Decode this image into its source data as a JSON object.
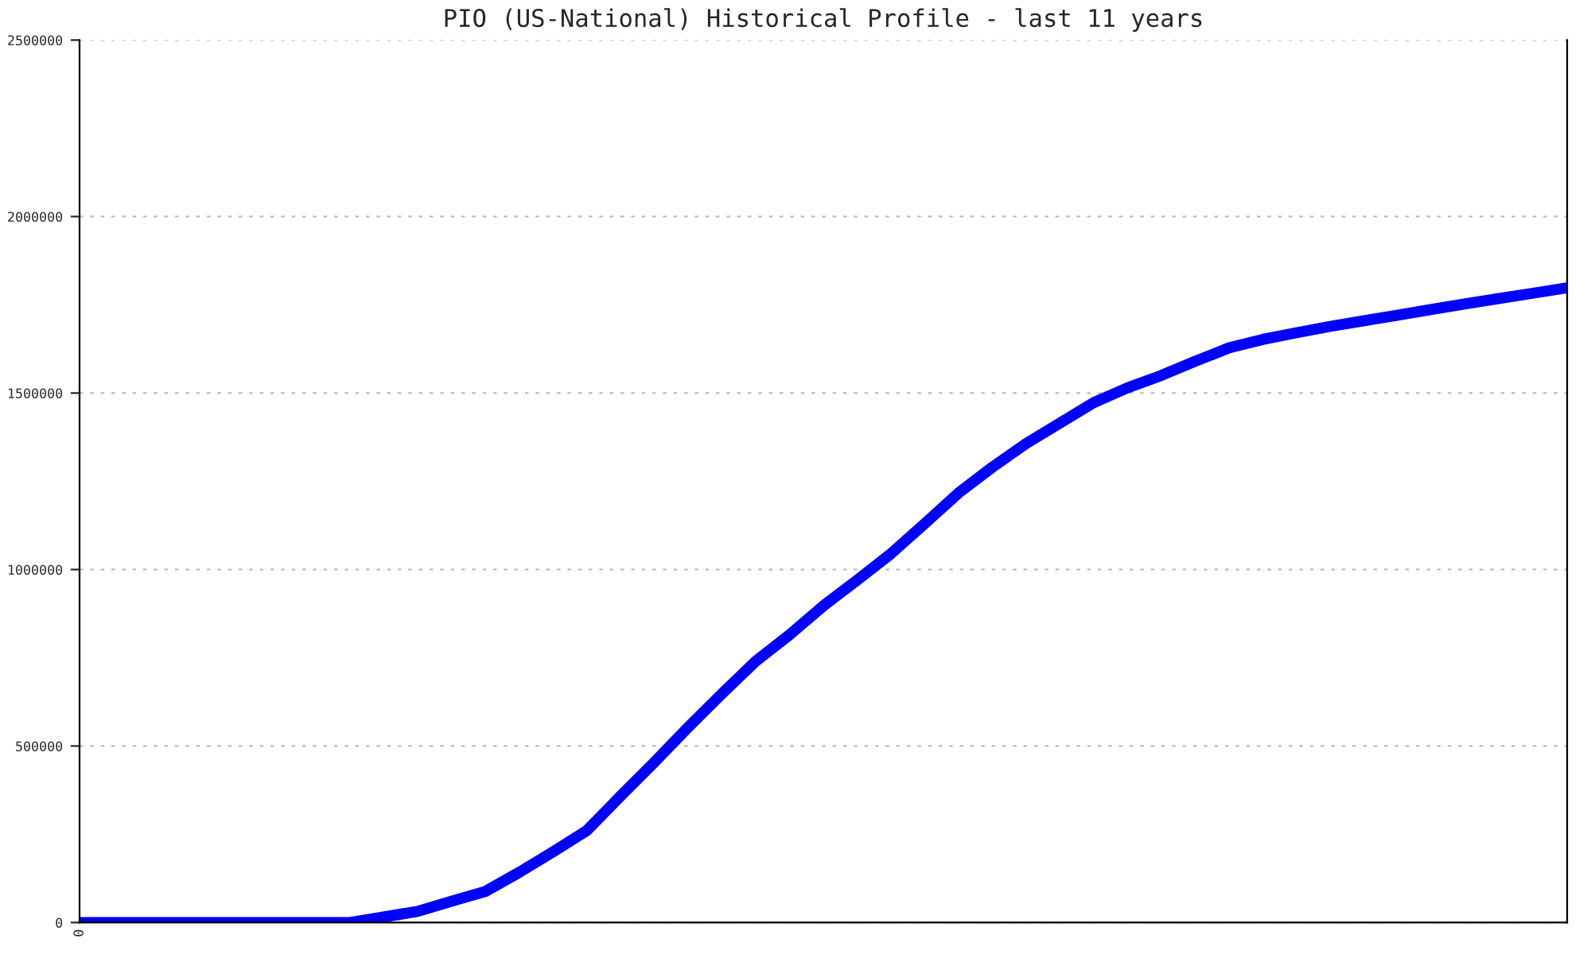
{
  "chart_data": {
    "type": "line",
    "title": "PIO (US-National) Historical Profile - last 11 years",
    "categories": [
      "0",
      null,
      null,
      null,
      null,
      null,
      null,
      null,
      null,
      null,
      null,
      null,
      null,
      null,
      null,
      null,
      null,
      null,
      null,
      null,
      null,
      null,
      null,
      null,
      null,
      null,
      null,
      null,
      null,
      null,
      null,
      null,
      null,
      null,
      null,
      null,
      null,
      null,
      null,
      null,
      null,
      null,
      null,
      null,
      null
    ],
    "series": [
      {
        "color": "#0000ff",
        "values": [
          0,
          0,
          0,
          0,
          0,
          0,
          0,
          0,
          0,
          16000,
          31500,
          60500,
          88000,
          142000,
          200000,
          260000,
          358000,
          454000,
          553000,
          648000,
          740000,
          815000,
          897000,
          970000,
          1045000,
          1130000,
          1217000,
          1290000,
          1357000,
          1415000,
          1473000,
          1515000,
          1550000,
          1590000,
          1628000,
          1652000,
          1671000,
          1689000,
          1705000,
          1721000,
          1737000,
          1753000,
          1768000,
          1783000,
          1798000
        ]
      }
    ],
    "ylim": [
      0,
      2500000
    ],
    "yticks": [
      0,
      500000,
      1000000,
      1500000,
      2000000,
      2500000
    ],
    "grid": "y",
    "line_style": "solid",
    "marker": "none"
  }
}
